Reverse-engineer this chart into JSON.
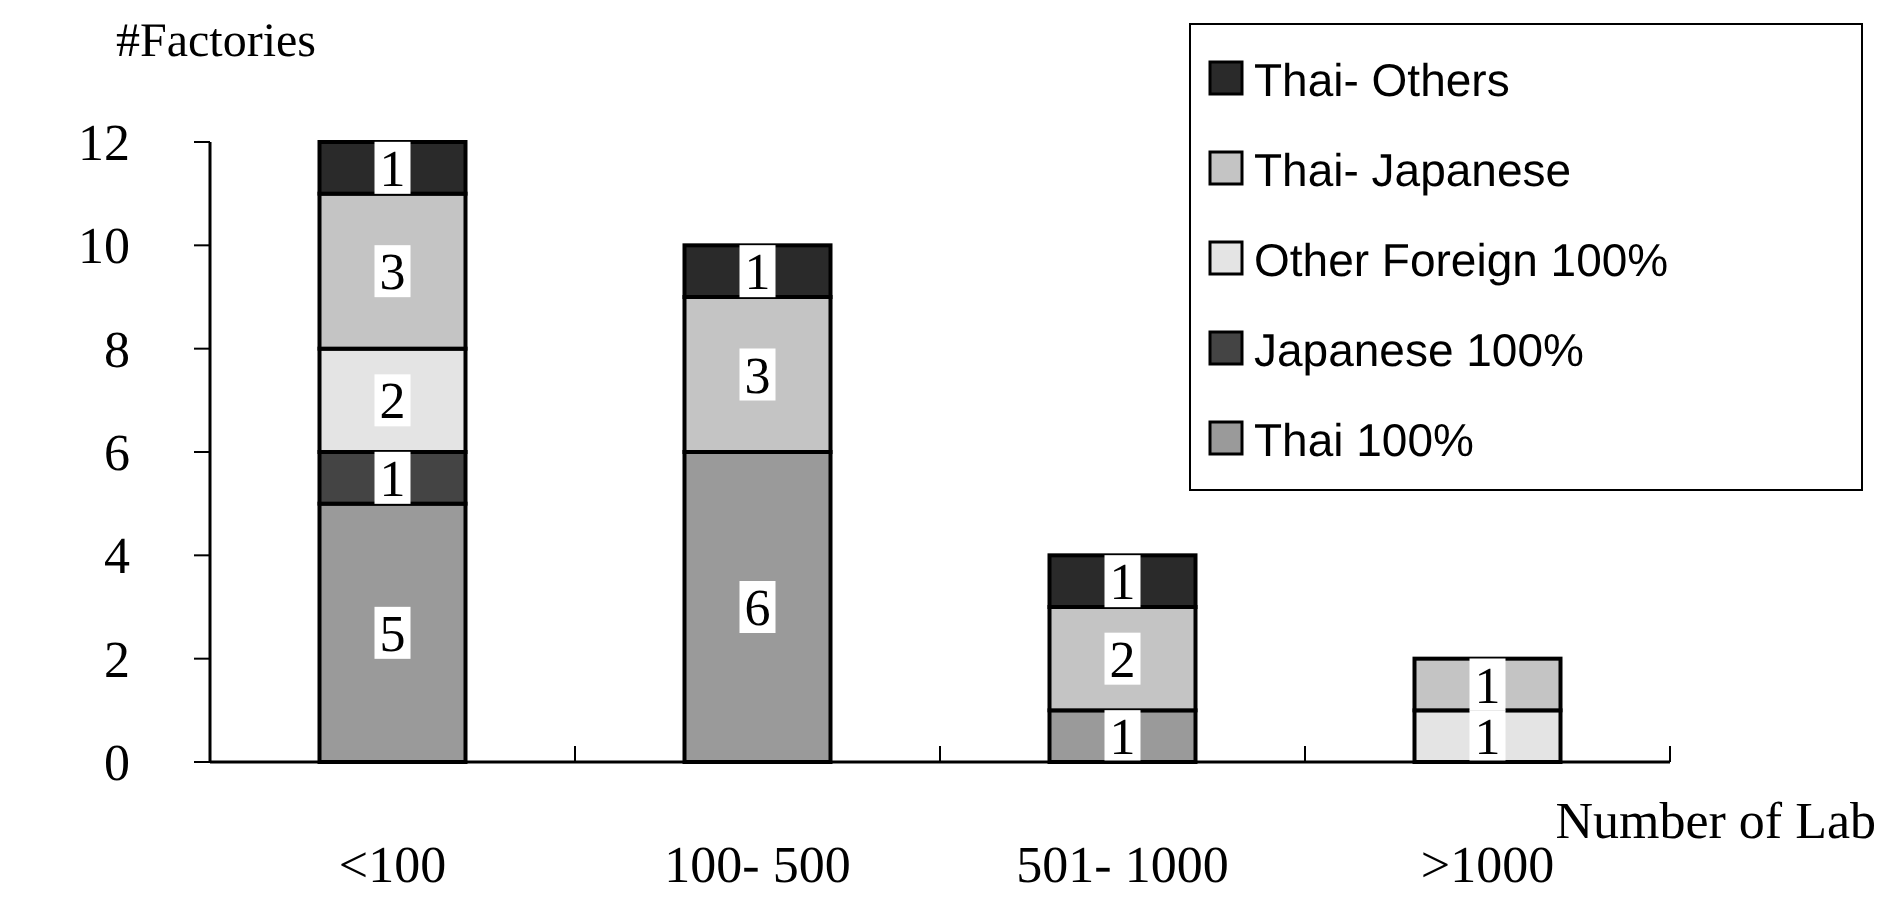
{
  "chart_data": {
    "type": "bar",
    "stacked": true,
    "ylabel": "#Factories",
    "xlabel": "Number of Lab",
    "categories": [
      "<100",
      "100- 500",
      "501- 1000",
      ">1000"
    ],
    "series": [
      {
        "name": "Thai 100%",
        "color": "#9a9a9a",
        "values": [
          5,
          6,
          1,
          null
        ]
      },
      {
        "name": "Japanese 100%",
        "color": "#444444",
        "values": [
          1,
          null,
          null,
          null
        ]
      },
      {
        "name": "Other Foreign 100%",
        "color": "#e4e4e4",
        "values": [
          2,
          null,
          null,
          1
        ]
      },
      {
        "name": "Thai- Japanese",
        "color": "#c4c4c4",
        "values": [
          3,
          3,
          2,
          1
        ]
      },
      {
        "name": "Thai- Others",
        "color": "#2a2a2a",
        "values": [
          1,
          1,
          1,
          null
        ]
      }
    ],
    "ylim": [
      0,
      12
    ],
    "yticks": [
      0,
      2,
      4,
      6,
      8,
      10,
      12
    ],
    "data_labels": true,
    "legend": "top right"
  }
}
